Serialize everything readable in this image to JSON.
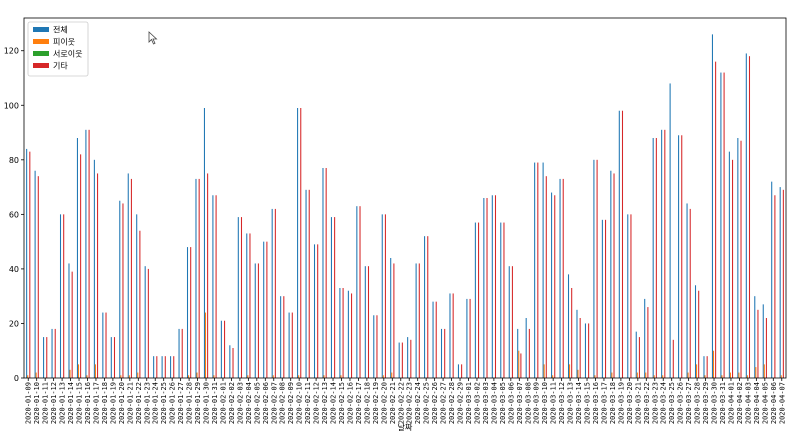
{
  "chart_data": {
    "type": "bar",
    "xlabel": "날짜",
    "ylabel": "",
    "ylim": [
      0,
      132
    ],
    "yticks": [
      0,
      20,
      40,
      60,
      80,
      100,
      120
    ],
    "grid": false,
    "legend_position": "top-left",
    "categories": [
      "2020-01-09",
      "2020-01-10",
      "2020-01-11",
      "2020-01-12",
      "2020-01-13",
      "2020-01-14",
      "2020-01-15",
      "2020-01-16",
      "2020-01-17",
      "2020-01-18",
      "2020-01-19",
      "2020-01-20",
      "2020-01-21",
      "2020-01-22",
      "2020-01-23",
      "2020-01-24",
      "2020-01-25",
      "2020-01-26",
      "2020-01-27",
      "2020-01-28",
      "2020-01-29",
      "2020-01-30",
      "2020-01-31",
      "2020-02-01",
      "2020-02-02",
      "2020-02-03",
      "2020-02-04",
      "2020-02-05",
      "2020-02-06",
      "2020-02-07",
      "2020-02-08",
      "2020-02-09",
      "2020-02-10",
      "2020-02-11",
      "2020-02-12",
      "2020-02-13",
      "2020-02-14",
      "2020-02-15",
      "2020-02-16",
      "2020-02-17",
      "2020-02-18",
      "2020-02-19",
      "2020-02-20",
      "2020-02-21",
      "2020-02-22",
      "2020-02-23",
      "2020-02-24",
      "2020-02-25",
      "2020-02-26",
      "2020-02-27",
      "2020-02-28",
      "2020-02-29",
      "2020-03-01",
      "2020-03-02",
      "2020-03-03",
      "2020-03-04",
      "2020-03-05",
      "2020-03-06",
      "2020-03-07",
      "2020-03-08",
      "2020-03-09",
      "2020-03-10",
      "2020-03-11",
      "2020-03-12",
      "2020-03-13",
      "2020-03-14",
      "2020-03-15",
      "2020-03-16",
      "2020-03-17",
      "2020-03-18",
      "2020-03-19",
      "2020-03-20",
      "2020-03-21",
      "2020-03-22",
      "2020-03-23",
      "2020-03-24",
      "2020-03-25",
      "2020-03-26",
      "2020-03-27",
      "2020-03-28",
      "2020-03-29",
      "2020-03-30",
      "2020-03-31",
      "2020-04-01",
      "2020-04-02",
      "2020-04-03",
      "2020-04-04",
      "2020-04-05",
      "2020-04-06",
      "2020-04-07"
    ],
    "series": [
      {
        "name": "전체",
        "color": "#1f77b4",
        "values": [
          84,
          76,
          15,
          18,
          60,
          42,
          88,
          91,
          80,
          24,
          15,
          65,
          75,
          60,
          41,
          8,
          8,
          8,
          18,
          48,
          73,
          99,
          67,
          21,
          12,
          59,
          53,
          42,
          50,
          62,
          30,
          24,
          99,
          69,
          49,
          77,
          59,
          33,
          32,
          63,
          41,
          23,
          60,
          44,
          13,
          15,
          42,
          52,
          28,
          18,
          31,
          5,
          29,
          57,
          66,
          67,
          57,
          41,
          18,
          22,
          79,
          79,
          68,
          73,
          38,
          25,
          20,
          80,
          58,
          76,
          98,
          60,
          17,
          29,
          88,
          91,
          108,
          89,
          64,
          34,
          8,
          126,
          112,
          83,
          88,
          119,
          30,
          27,
          72,
          70
        ]
      },
      {
        "name": "피이웃",
        "color": "#ff7f0e",
        "values": [
          1,
          2,
          0,
          0,
          0,
          3,
          5,
          1,
          5,
          0,
          0,
          1,
          1,
          2,
          0,
          0,
          0,
          0,
          0,
          1,
          2,
          24,
          1,
          0,
          0,
          0,
          1,
          0,
          0,
          1,
          0,
          0,
          1,
          0,
          0,
          1,
          0,
          1,
          0,
          0,
          0,
          0,
          1,
          2,
          0,
          0,
          0,
          0,
          0,
          0,
          0,
          0,
          0,
          0,
          0,
          0,
          0,
          0,
          10,
          0,
          0,
          5,
          1,
          0,
          5,
          3,
          0,
          1,
          0,
          2,
          0,
          0,
          2,
          2,
          1,
          1,
          0,
          0,
          2,
          5,
          1,
          10,
          1,
          2,
          2,
          1,
          4,
          5,
          0,
          1
        ]
      },
      {
        "name": "서로이웃",
        "color": "#2ca02c",
        "values": [
          0,
          0,
          0,
          0,
          0,
          0,
          0,
          0,
          0,
          0,
          0,
          0,
          0,
          0,
          0,
          0,
          0,
          0,
          0,
          0,
          0,
          0,
          0,
          0,
          0,
          0,
          0,
          0,
          0,
          0,
          0,
          0,
          0,
          0,
          0,
          0,
          0,
          0,
          0,
          0,
          0,
          0,
          0,
          0,
          0,
          0,
          0,
          0,
          0,
          0,
          0,
          0,
          0,
          0,
          0,
          0,
          0,
          0,
          0,
          0,
          0,
          0,
          0,
          0,
          0,
          0,
          0,
          0,
          0,
          0,
          0,
          0,
          0,
          0,
          0,
          0,
          0,
          0,
          0,
          0,
          0,
          0,
          0,
          0,
          0,
          0,
          0,
          0,
          0,
          0
        ]
      },
      {
        "name": "기타",
        "color": "#d62728",
        "values": [
          83,
          74,
          15,
          18,
          60,
          39,
          82,
          91,
          75,
          24,
          15,
          64,
          73,
          54,
          40,
          8,
          8,
          8,
          18,
          48,
          73,
          75,
          67,
          21,
          11,
          59,
          53,
          42,
          50,
          62,
          30,
          24,
          99,
          69,
          49,
          77,
          59,
          33,
          31,
          63,
          41,
          23,
          60,
          42,
          13,
          14,
          42,
          52,
          28,
          18,
          31,
          5,
          29,
          57,
          66,
          67,
          57,
          41,
          9,
          18,
          79,
          74,
          67,
          73,
          33,
          22,
          20,
          80,
          58,
          75,
          98,
          60,
          15,
          26,
          88,
          91,
          14,
          89,
          62,
          32,
          8,
          116,
          112,
          80,
          87,
          118,
          25,
          22,
          67,
          69
        ]
      }
    ]
  }
}
